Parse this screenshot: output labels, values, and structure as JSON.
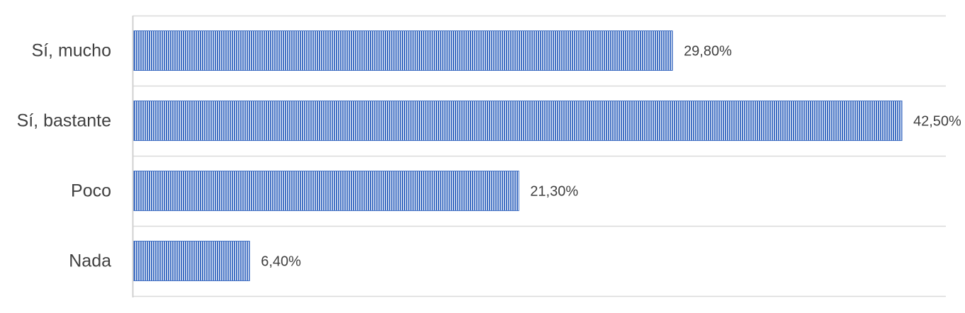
{
  "chart_data": {
    "type": "bar",
    "orientation": "horizontal",
    "categories": [
      "Sí, mucho",
      "Sí, bastante",
      "Poco",
      "Nada"
    ],
    "values": [
      29.8,
      42.5,
      21.3,
      6.4
    ],
    "value_labels": [
      "29,80%",
      "42,50%",
      "21,30%",
      "6,40%"
    ],
    "title": "",
    "xlabel": "",
    "ylabel": "",
    "xlim": [
      0,
      42.5
    ],
    "grid": "horizontal category separators",
    "legend": "none",
    "bar_color": "#4472c4",
    "bar_pattern": "vertical-stripes"
  }
}
